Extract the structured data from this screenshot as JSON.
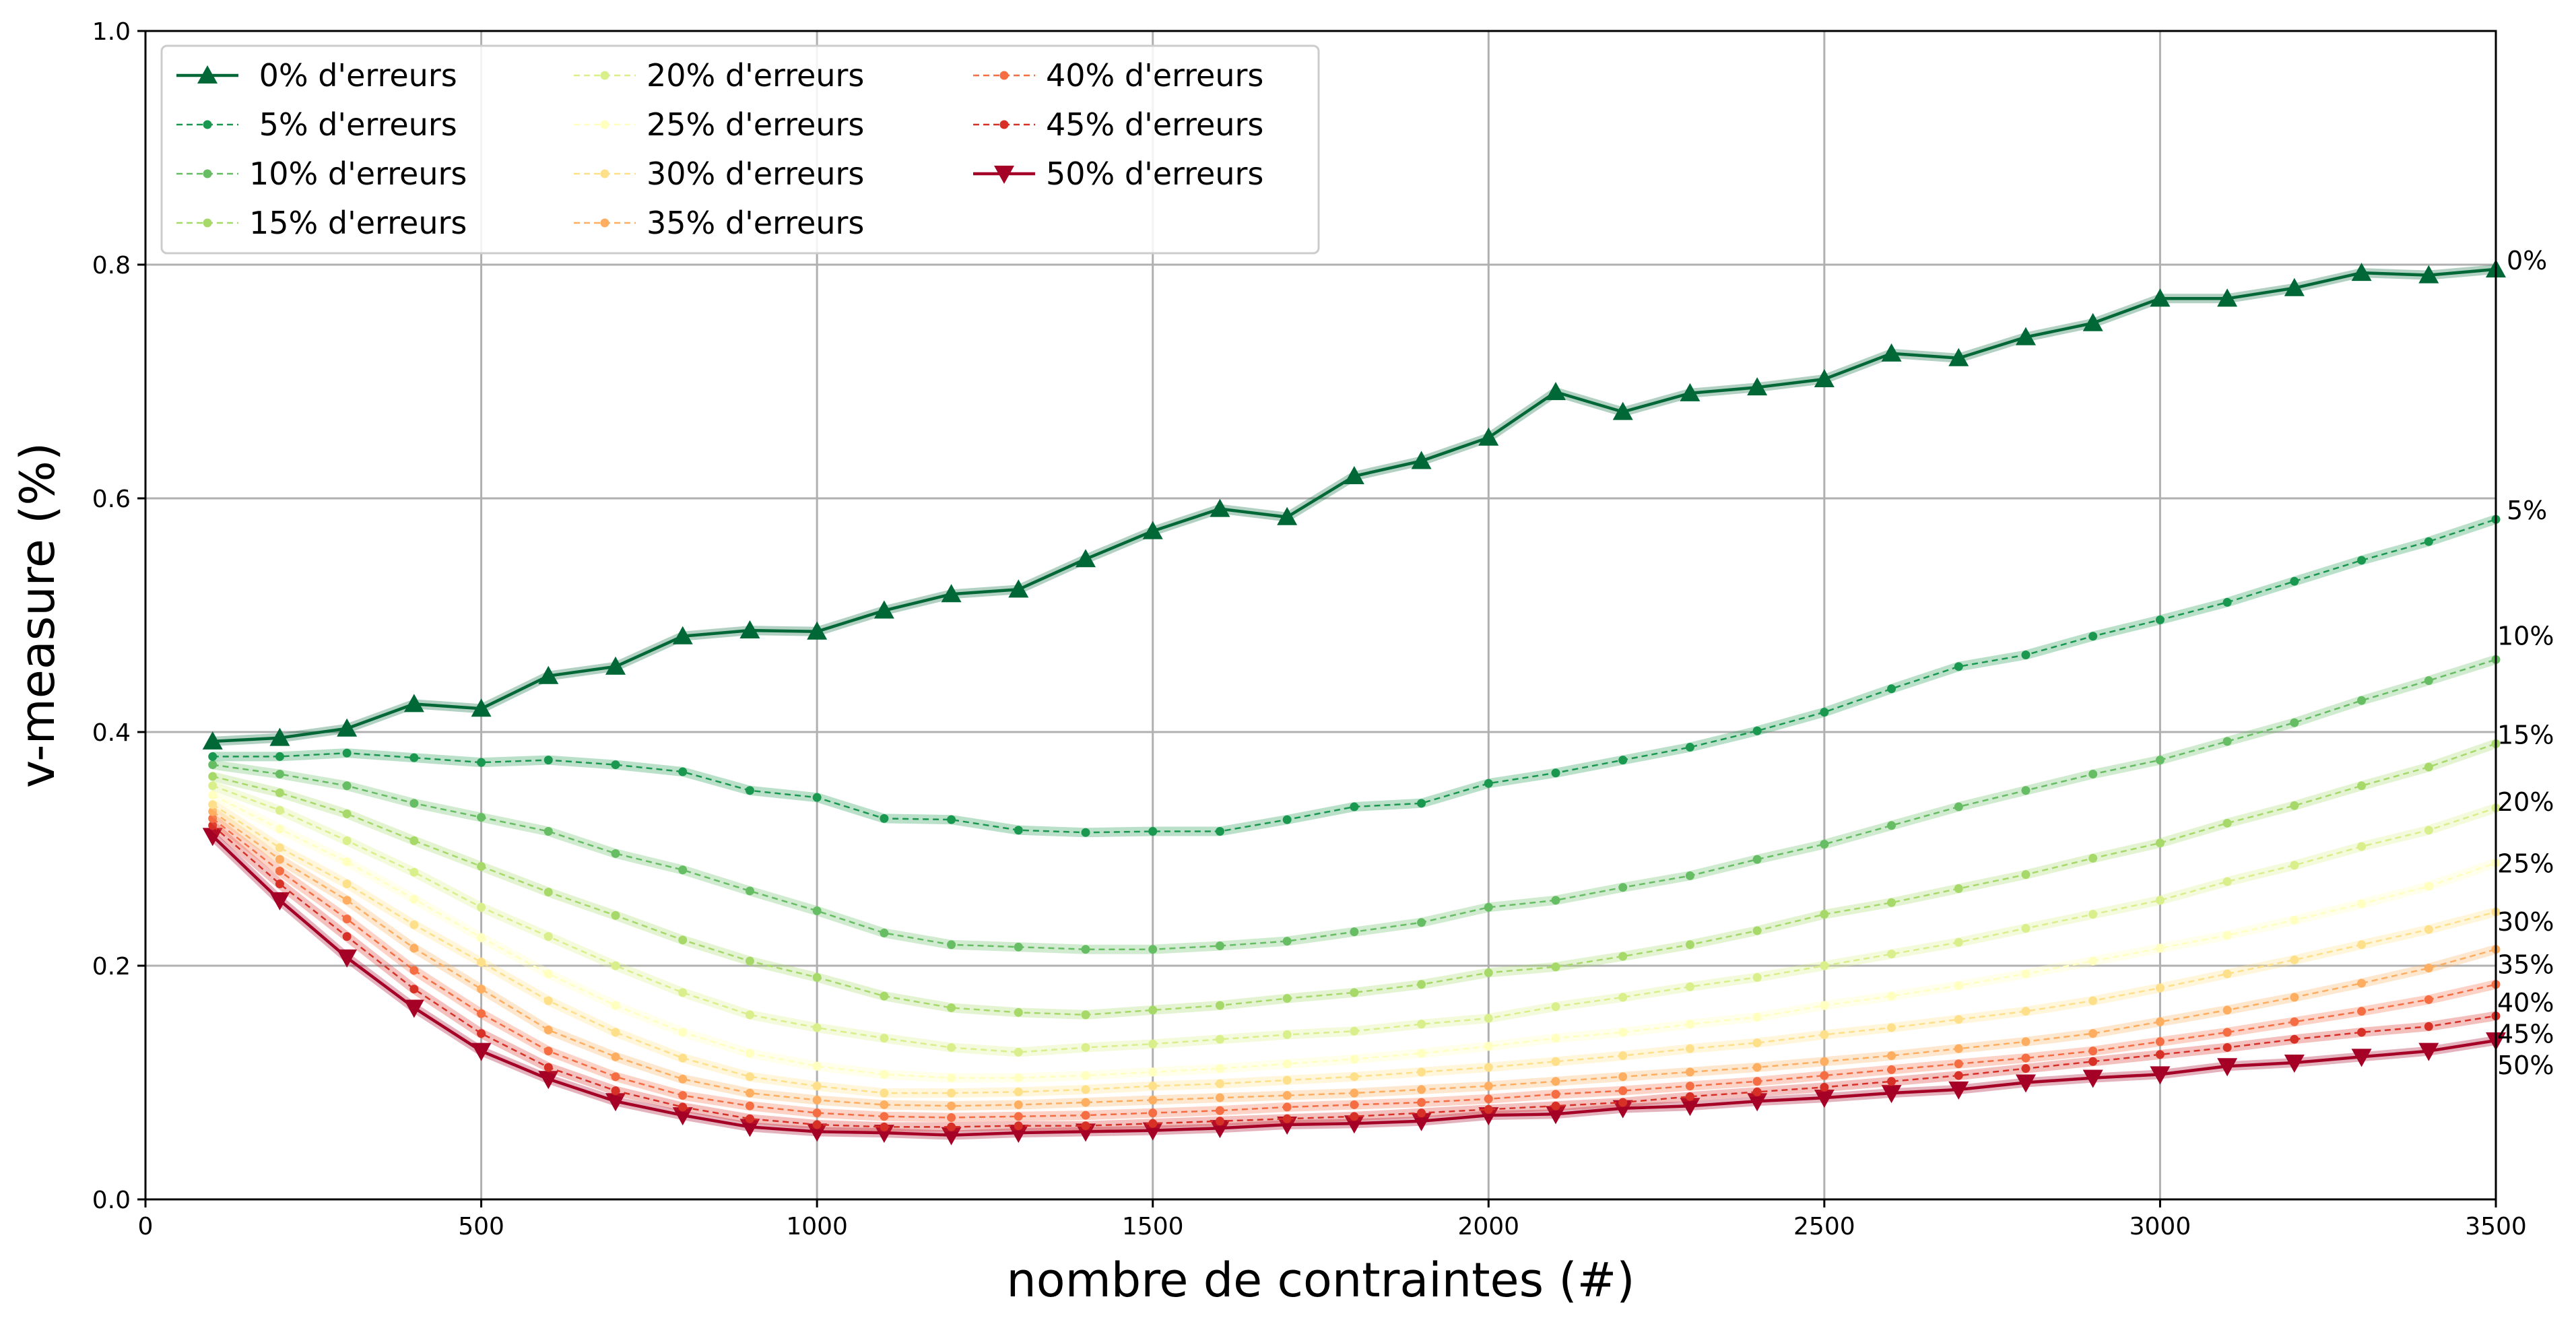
{
  "chart_data": {
    "type": "line",
    "xlabel": "nombre de contraintes (#)",
    "ylabel": "v-measure (%)",
    "xlim": [
      0,
      3500
    ],
    "ylim": [
      0.0,
      1.0
    ],
    "xticks": [
      0,
      500,
      1000,
      1500,
      2000,
      2500,
      3000,
      3500
    ],
    "yticks": [
      0.0,
      0.2,
      0.4,
      0.6,
      0.8,
      1.0
    ],
    "xtick_labels": [
      "0",
      "500",
      "1000",
      "1500",
      "2000",
      "2500",
      "3000",
      "3500"
    ],
    "ytick_labels": [
      "0.0",
      "0.2",
      "0.4",
      "0.6",
      "0.8",
      "1.0"
    ],
    "grid": true,
    "legend_position": "top-left",
    "legend_columns": 3,
    "x": [
      100,
      200,
      300,
      400,
      500,
      600,
      700,
      800,
      900,
      1000,
      1100,
      1200,
      1300,
      1400,
      1500,
      1600,
      1700,
      1800,
      1900,
      2000,
      2100,
      2200,
      2300,
      2400,
      2500,
      2600,
      2700,
      2800,
      2900,
      3000,
      3100,
      3200,
      3300,
      3400,
      3500
    ],
    "series": [
      {
        "name": " 0% d'erreurs",
        "end_label": "0%",
        "color": "#006837",
        "marker": "triangle-up",
        "dashed": false,
        "values": [
          0.392,
          0.395,
          0.403,
          0.424,
          0.42,
          0.448,
          0.456,
          0.482,
          0.487,
          0.486,
          0.504,
          0.518,
          0.522,
          0.548,
          0.572,
          0.591,
          0.584,
          0.619,
          0.632,
          0.652,
          0.691,
          0.674,
          0.69,
          0.695,
          0.702,
          0.724,
          0.72,
          0.738,
          0.75,
          0.771,
          0.771,
          0.78,
          0.793,
          0.791,
          0.796
        ]
      },
      {
        "name": " 5% d'erreurs",
        "end_label": "5%",
        "color": "#1a9850",
        "marker": "dot",
        "dashed": true,
        "values": [
          0.379,
          0.379,
          0.382,
          0.378,
          0.374,
          0.376,
          0.372,
          0.366,
          0.35,
          0.344,
          0.326,
          0.325,
          0.316,
          0.314,
          0.315,
          0.315,
          0.325,
          0.336,
          0.339,
          0.356,
          0.365,
          0.376,
          0.387,
          0.401,
          0.417,
          0.437,
          0.456,
          0.466,
          0.482,
          0.496,
          0.511,
          0.529,
          0.547,
          0.563,
          0.582
        ]
      },
      {
        "name": "10% d'erreurs",
        "end_label": "10%",
        "color": "#66bd63",
        "marker": "dot",
        "dashed": true,
        "values": [
          0.372,
          0.364,
          0.354,
          0.339,
          0.327,
          0.315,
          0.296,
          0.282,
          0.264,
          0.247,
          0.228,
          0.218,
          0.216,
          0.214,
          0.214,
          0.217,
          0.221,
          0.229,
          0.237,
          0.25,
          0.256,
          0.267,
          0.277,
          0.291,
          0.304,
          0.32,
          0.336,
          0.35,
          0.364,
          0.376,
          0.392,
          0.408,
          0.427,
          0.444,
          0.462
        ]
      },
      {
        "name": "15% d'erreurs",
        "end_label": "15%",
        "color": "#a6d96a",
        "marker": "dot",
        "dashed": true,
        "values": [
          0.362,
          0.348,
          0.33,
          0.307,
          0.285,
          0.263,
          0.243,
          0.222,
          0.204,
          0.19,
          0.174,
          0.164,
          0.16,
          0.158,
          0.162,
          0.166,
          0.172,
          0.177,
          0.184,
          0.194,
          0.199,
          0.208,
          0.218,
          0.23,
          0.244,
          0.254,
          0.266,
          0.278,
          0.292,
          0.305,
          0.322,
          0.337,
          0.354,
          0.37,
          0.39
        ]
      },
      {
        "name": "20% d'erreurs",
        "end_label": "20%",
        "color": "#d9ef8b",
        "marker": "dot",
        "dashed": true,
        "values": [
          0.354,
          0.333,
          0.307,
          0.28,
          0.25,
          0.225,
          0.2,
          0.177,
          0.158,
          0.147,
          0.138,
          0.13,
          0.126,
          0.13,
          0.133,
          0.137,
          0.141,
          0.144,
          0.15,
          0.155,
          0.165,
          0.173,
          0.182,
          0.19,
          0.2,
          0.21,
          0.22,
          0.232,
          0.244,
          0.256,
          0.272,
          0.286,
          0.302,
          0.316,
          0.335
        ]
      },
      {
        "name": "25% d'erreurs",
        "end_label": "25%",
        "color": "#ffffbf",
        "marker": "dot",
        "dashed": true,
        "values": [
          0.346,
          0.317,
          0.289,
          0.257,
          0.224,
          0.193,
          0.166,
          0.143,
          0.125,
          0.114,
          0.107,
          0.104,
          0.104,
          0.106,
          0.109,
          0.112,
          0.116,
          0.12,
          0.125,
          0.131,
          0.138,
          0.143,
          0.15,
          0.156,
          0.166,
          0.174,
          0.183,
          0.193,
          0.204,
          0.215,
          0.226,
          0.239,
          0.253,
          0.268,
          0.288
        ]
      },
      {
        "name": "30% d'erreurs",
        "end_label": "30%",
        "color": "#fee08b",
        "marker": "dot",
        "dashed": true,
        "values": [
          0.338,
          0.301,
          0.27,
          0.235,
          0.203,
          0.17,
          0.143,
          0.121,
          0.105,
          0.097,
          0.091,
          0.091,
          0.092,
          0.094,
          0.097,
          0.099,
          0.102,
          0.105,
          0.109,
          0.113,
          0.118,
          0.123,
          0.129,
          0.134,
          0.141,
          0.147,
          0.154,
          0.161,
          0.17,
          0.181,
          0.193,
          0.205,
          0.218,
          0.231,
          0.246
        ]
      },
      {
        "name": "35% d'erreurs",
        "end_label": "35%",
        "color": "#fdae61",
        "marker": "dot",
        "dashed": true,
        "values": [
          0.332,
          0.291,
          0.256,
          0.215,
          0.18,
          0.145,
          0.122,
          0.103,
          0.091,
          0.085,
          0.081,
          0.08,
          0.081,
          0.083,
          0.085,
          0.087,
          0.089,
          0.091,
          0.094,
          0.097,
          0.101,
          0.105,
          0.109,
          0.113,
          0.118,
          0.123,
          0.129,
          0.135,
          0.142,
          0.152,
          0.162,
          0.173,
          0.185,
          0.198,
          0.214
        ]
      },
      {
        "name": "40% d'erreurs",
        "end_label": "40%",
        "color": "#f46d43",
        "marker": "dot",
        "dashed": true,
        "values": [
          0.326,
          0.281,
          0.24,
          0.196,
          0.159,
          0.127,
          0.105,
          0.089,
          0.08,
          0.074,
          0.071,
          0.07,
          0.071,
          0.072,
          0.074,
          0.076,
          0.079,
          0.081,
          0.083,
          0.086,
          0.09,
          0.093,
          0.097,
          0.101,
          0.106,
          0.111,
          0.116,
          0.121,
          0.127,
          0.135,
          0.143,
          0.152,
          0.161,
          0.171,
          0.184
        ]
      },
      {
        "name": "45% d'erreurs",
        "end_label": "45%",
        "color": "#d73027",
        "marker": "dot",
        "dashed": true,
        "values": [
          0.32,
          0.27,
          0.225,
          0.18,
          0.142,
          0.113,
          0.093,
          0.079,
          0.069,
          0.064,
          0.062,
          0.062,
          0.063,
          0.063,
          0.065,
          0.067,
          0.069,
          0.071,
          0.074,
          0.077,
          0.08,
          0.083,
          0.088,
          0.092,
          0.096,
          0.101,
          0.106,
          0.112,
          0.118,
          0.124,
          0.13,
          0.137,
          0.143,
          0.148,
          0.157
        ]
      },
      {
        "name": "50% d'erreurs",
        "end_label": "50%",
        "color": "#a50026",
        "marker": "triangle-down",
        "dashed": false,
        "values": [
          0.311,
          0.256,
          0.207,
          0.164,
          0.127,
          0.103,
          0.084,
          0.072,
          0.062,
          0.058,
          0.057,
          0.055,
          0.057,
          0.058,
          0.059,
          0.061,
          0.064,
          0.065,
          0.067,
          0.072,
          0.073,
          0.078,
          0.08,
          0.084,
          0.087,
          0.091,
          0.094,
          0.1,
          0.104,
          0.107,
          0.114,
          0.117,
          0.122,
          0.127,
          0.136
        ]
      }
    ]
  }
}
